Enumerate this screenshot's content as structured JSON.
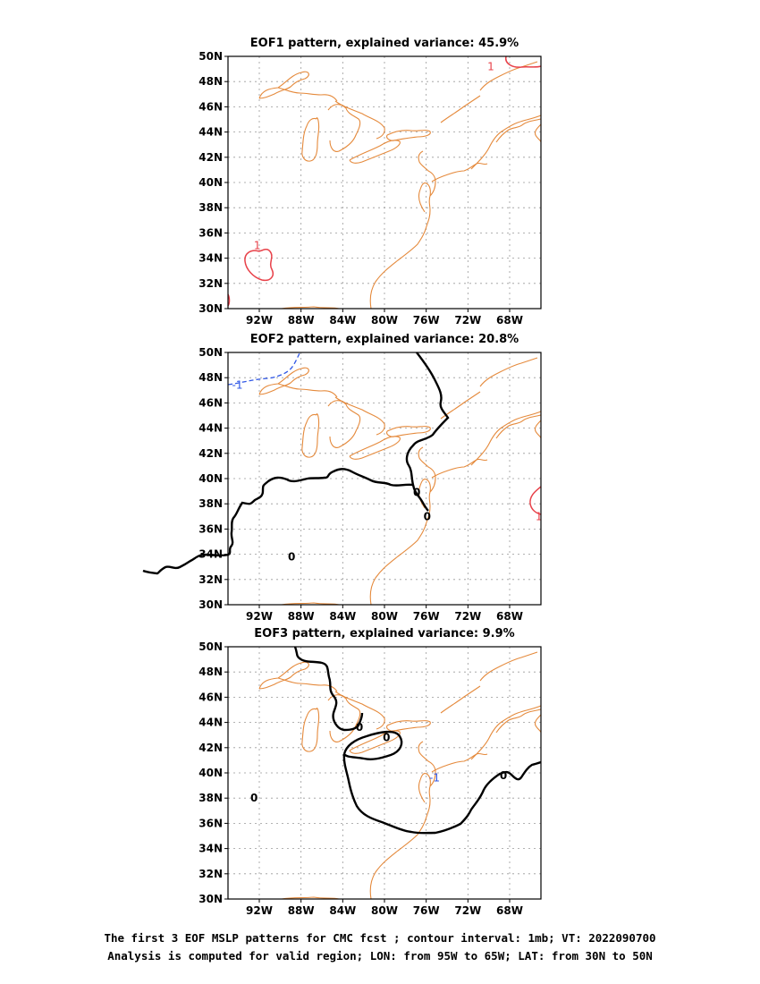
{
  "colors": {
    "coastline": "#e58a3c",
    "positive_contour": "#e8424a",
    "negative_contour": "#2f57e6",
    "zero_contour": "#000000",
    "grid": "#999999"
  },
  "map_extent": {
    "lon": [
      -95,
      -65
    ],
    "lat": [
      30,
      50
    ]
  },
  "x_tick_labels": [
    "92W",
    "88W",
    "84W",
    "80W",
    "76W",
    "72W",
    "68W"
  ],
  "y_tick_labels": [
    "50N",
    "48N",
    "46N",
    "44N",
    "42N",
    "40N",
    "38N",
    "36N",
    "34N",
    "32N",
    "30N"
  ],
  "panels": [
    {
      "title": "EOF1 pattern, explained variance: 45.9%",
      "contour_labels": [
        {
          "text": "1",
          "lon": -69.8,
          "lat": 49.2,
          "kind": "positive"
        },
        {
          "text": "1",
          "lon": -92.2,
          "lat": 35.0,
          "kind": "positive"
        }
      ]
    },
    {
      "title": "EOF2 pattern, explained variance: 20.8%",
      "contour_labels": [
        {
          "text": "-1",
          "lon": -94.1,
          "lat": 47.4,
          "kind": "negative"
        },
        {
          "text": "0",
          "lon": -76.9,
          "lat": 38.9,
          "kind": "zero"
        },
        {
          "text": "0",
          "lon": -75.9,
          "lat": 37.0,
          "kind": "zero"
        },
        {
          "text": "0",
          "lon": -88.9,
          "lat": 33.8,
          "kind": "zero"
        },
        {
          "text": "1",
          "lon": -65.2,
          "lat": 37.0,
          "kind": "positive"
        }
      ]
    },
    {
      "title": "EOF3 pattern, explained variance: 9.9%",
      "contour_labels": [
        {
          "text": "0",
          "lon": -82.4,
          "lat": 43.6,
          "kind": "zero"
        },
        {
          "text": "0",
          "lon": -79.8,
          "lat": 42.8,
          "kind": "zero"
        },
        {
          "text": "0",
          "lon": -92.5,
          "lat": 38.0,
          "kind": "zero"
        },
        {
          "text": "-1",
          "lon": -75.2,
          "lat": 39.6,
          "kind": "negative"
        },
        {
          "text": "0",
          "lon": -68.6,
          "lat": 39.8,
          "kind": "zero"
        }
      ]
    }
  ],
  "caption_line_1": "The first 3 EOF MSLP patterns for CMC fcst ; contour interval: 1mb; VT: 2022090700",
  "caption_line_2": "Analysis is computed for valid region; LON: from 95W to 65W; LAT: from 30N to 50N"
}
